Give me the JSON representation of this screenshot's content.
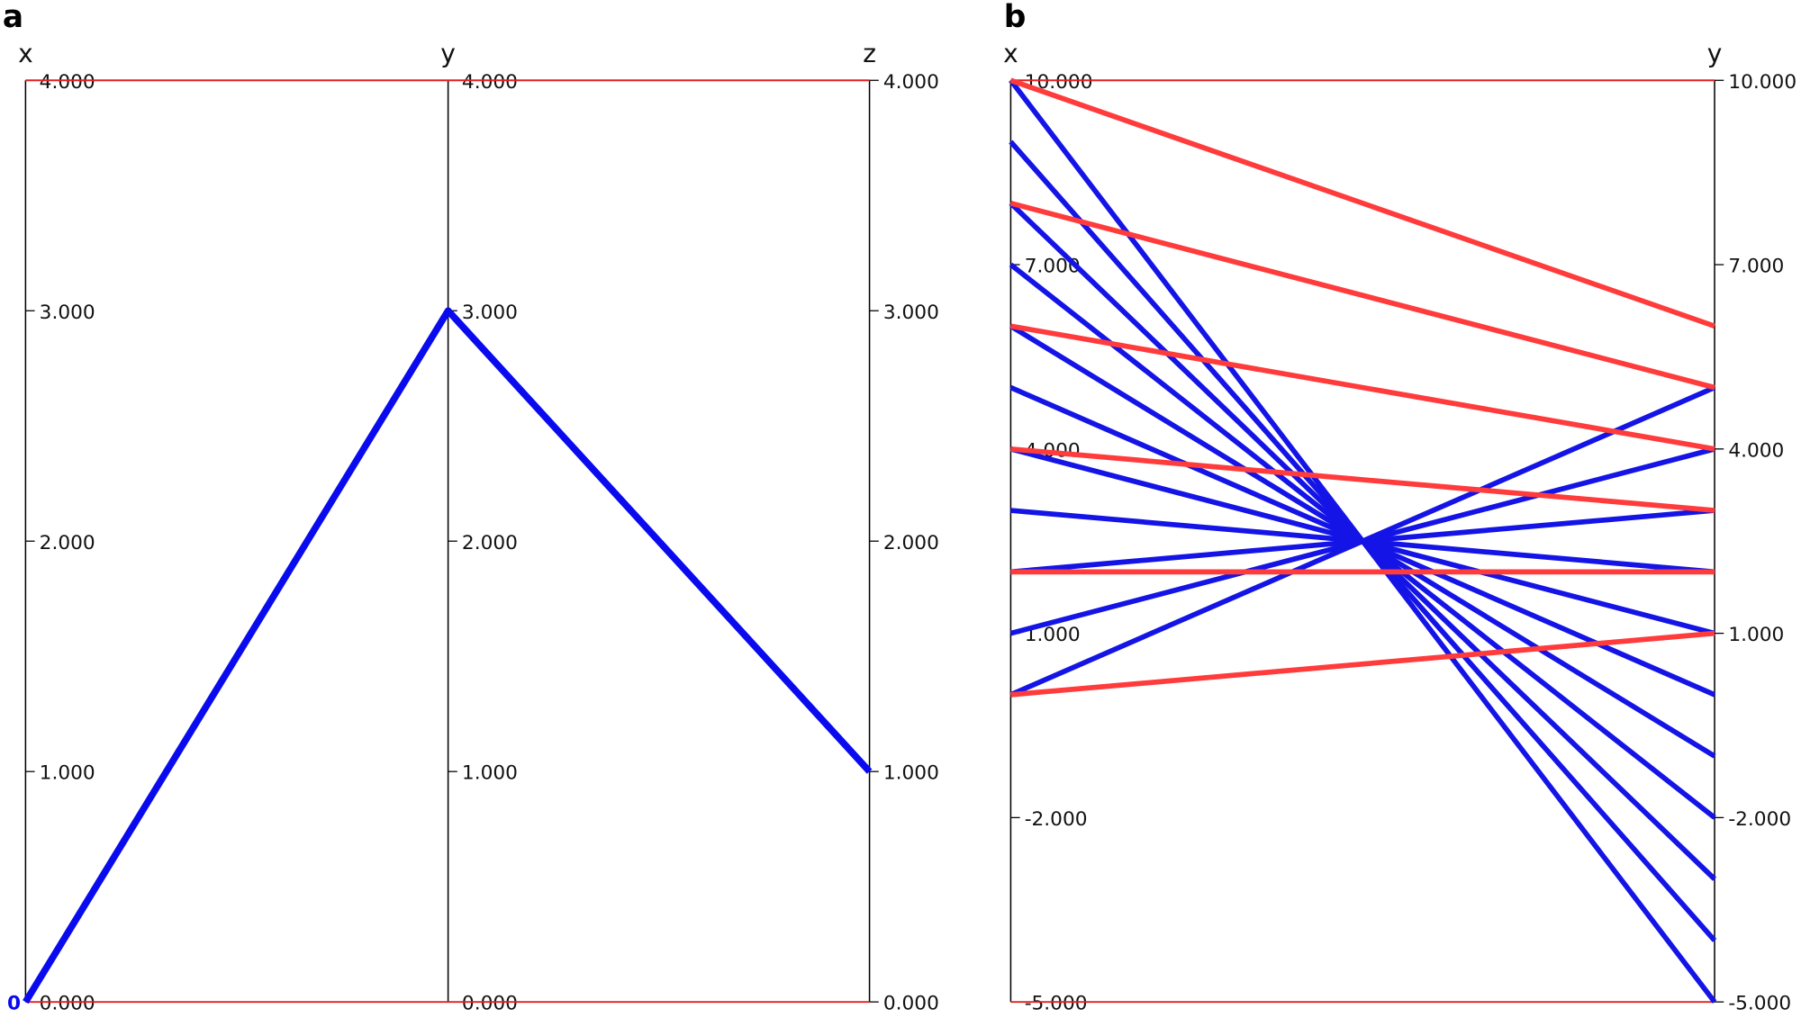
{
  "chart_data": [
    {
      "type": "parallel",
      "panel_label": "a",
      "dimensions": [
        "x",
        "y",
        "z"
      ],
      "ylim": [
        0,
        4
      ],
      "yticks": [
        {
          "value": 0,
          "label": "0.000"
        },
        {
          "value": 1,
          "label": "1.000"
        },
        {
          "value": 2,
          "label": "2.000"
        },
        {
          "value": 3,
          "label": "3.000"
        },
        {
          "value": 4,
          "label": "4.000"
        }
      ],
      "series": [
        {
          "name": "0",
          "color": "#0a0aee",
          "values": [
            0,
            3,
            1
          ]
        }
      ]
    },
    {
      "type": "parallel",
      "panel_label": "b",
      "dimensions": [
        "x",
        "y"
      ],
      "ylim": [
        -5,
        10
      ],
      "yticks": [
        {
          "value": -5,
          "label": "-5.000"
        },
        {
          "value": -2,
          "label": "-2.000"
        },
        {
          "value": 1,
          "label": "1.000"
        },
        {
          "value": 4,
          "label": "4.000"
        },
        {
          "value": 7,
          "label": "7.000"
        },
        {
          "value": 10,
          "label": "10.000"
        }
      ],
      "series": [
        {
          "color": "#1414e6",
          "values": [
            10,
            -5
          ]
        },
        {
          "color": "#1414e6",
          "values": [
            9,
            -4
          ]
        },
        {
          "color": "#1414e6",
          "values": [
            8,
            -3
          ]
        },
        {
          "color": "#1414e6",
          "values": [
            7,
            -2
          ]
        },
        {
          "color": "#1414e6",
          "values": [
            6,
            -1
          ]
        },
        {
          "color": "#1414e6",
          "values": [
            5,
            0
          ]
        },
        {
          "color": "#1414e6",
          "values": [
            4,
            1
          ]
        },
        {
          "color": "#1414e6",
          "values": [
            3,
            2
          ]
        },
        {
          "color": "#1414e6",
          "values": [
            2,
            3
          ]
        },
        {
          "color": "#1414e6",
          "values": [
            1,
            4
          ]
        },
        {
          "color": "#1414e6",
          "values": [
            0,
            5
          ]
        },
        {
          "color": "#ff3b3b",
          "values": [
            10,
            6
          ]
        },
        {
          "color": "#ff3b3b",
          "values": [
            8,
            5
          ]
        },
        {
          "color": "#ff3b3b",
          "values": [
            6,
            4
          ]
        },
        {
          "color": "#ff3b3b",
          "values": [
            4,
            3
          ]
        },
        {
          "color": "#ff3b3b",
          "values": [
            2,
            2
          ]
        },
        {
          "color": "#ff3b3b",
          "values": [
            0,
            1
          ]
        }
      ]
    }
  ]
}
